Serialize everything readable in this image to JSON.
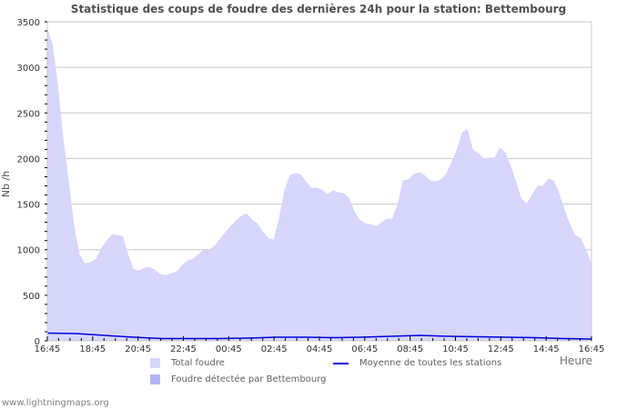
{
  "title": "Statistique des coups de foudre des dernières 24h pour la station: Bettembourg",
  "y_axis_label": "Nb /h",
  "x_axis_unit": "Heure",
  "credit": "www.lightningmaps.org",
  "colors": {
    "total_fill": "#d6d6fa",
    "detected_fill": "#b4b4f5",
    "average_line": "#0000dd",
    "grid": "#c8c8c8",
    "text": "#505050"
  },
  "legend": [
    {
      "label": "Total foudre",
      "type": "area",
      "color": "#d6d6fa"
    },
    {
      "label": "Foudre détectée par Bettembourg",
      "type": "area",
      "color": "#b4b4f5"
    },
    {
      "label": "Moyenne de toutes les stations",
      "type": "line",
      "color": "#0000dd"
    }
  ],
  "chart_data": {
    "type": "area",
    "title": "Statistique des coups de foudre des dernières 24h pour la station: Bettembourg",
    "xlabel": "Heure",
    "ylabel": "Nb /h",
    "ylim": [
      0,
      3500
    ],
    "yticks": [
      0,
      500,
      1000,
      1500,
      2000,
      2500,
      3000,
      3500
    ],
    "xticks": [
      "16:45",
      "18:45",
      "20:45",
      "22:45",
      "00:45",
      "02:45",
      "04:45",
      "06:45",
      "08:45",
      "10:45",
      "12:45",
      "14:45",
      "16:45"
    ],
    "grid": true,
    "legend_position": "bottom",
    "series": [
      {
        "name": "Total foudre",
        "values": [
          3430,
          3250,
          2800,
          2200,
          1750,
          1250,
          950,
          850,
          860,
          900,
          1020,
          1100,
          1170,
          1160,
          1150,
          950,
          790,
          770,
          800,
          810,
          780,
          730,
          720,
          740,
          760,
          830,
          880,
          900,
          950,
          1000,
          1000,
          1040,
          1120,
          1190,
          1260,
          1320,
          1370,
          1400,
          1330,
          1290,
          1200,
          1130,
          1110,
          1350,
          1650,
          1820,
          1840,
          1830,
          1750,
          1680,
          1680,
          1660,
          1610,
          1650,
          1630,
          1620,
          1570,
          1420,
          1330,
          1290,
          1280,
          1260,
          1300,
          1340,
          1340,
          1500,
          1760,
          1770,
          1830,
          1850,
          1820,
          1760,
          1750,
          1770,
          1830,
          1960,
          2100,
          2290,
          2320,
          2100,
          2060,
          2000,
          2010,
          2010,
          2120,
          2070,
          1920,
          1750,
          1560,
          1510,
          1610,
          1700,
          1700,
          1780,
          1760,
          1620,
          1440,
          1280,
          1160,
          1130,
          1000,
          850
        ]
      },
      {
        "name": "Foudre détectée par Bettembourg",
        "values": []
      },
      {
        "name": "Moyenne de toutes les stations",
        "x": [
          "16:45",
          "17:15",
          "17:45",
          "18:15",
          "18:45",
          "20:45",
          "22:45",
          "00:45",
          "02:45",
          "04:45",
          "06:45",
          "08:45",
          "10:15",
          "10:45",
          "11:15",
          "12:45",
          "14:45",
          "15:45",
          "16:15",
          "16:45"
        ],
        "values": [
          85,
          80,
          60,
          40,
          25,
          25,
          25,
          30,
          40,
          40,
          35,
          40,
          50,
          60,
          50,
          45,
          40,
          35,
          25,
          20
        ]
      }
    ]
  }
}
